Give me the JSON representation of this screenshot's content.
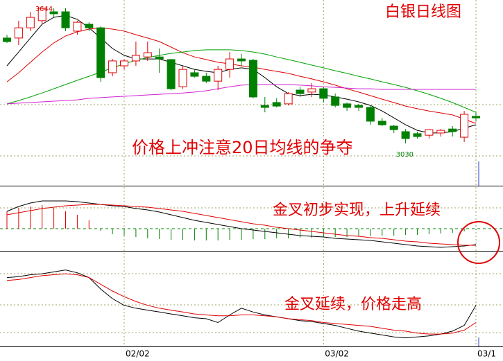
{
  "chart_data": [
    {
      "type": "candlestick",
      "title": "白银日线图",
      "annotation": "价格上冲注意20日均线的争夺",
      "categories": [
        null,
        null,
        null,
        null,
        null,
        null,
        null,
        null,
        null,
        null,
        "02/02",
        null,
        null,
        null,
        null,
        null,
        null,
        null,
        null,
        null,
        null,
        null,
        null,
        null,
        null,
        null,
        null,
        "03/02",
        null,
        null,
        null,
        null,
        null,
        null,
        null,
        null,
        null,
        null,
        null,
        null,
        "03/1"
      ],
      "open": [
        3504,
        3504,
        3550,
        3582,
        3622,
        3622,
        3535,
        3566,
        3550,
        3348,
        3379,
        3401,
        3419,
        3419,
        3407,
        3285,
        3348,
        3332,
        3310,
        3363,
        3410,
        3404,
        3201,
        3214,
        3208,
        3270,
        3261,
        3276,
        3239,
        3208,
        3201,
        3192,
        3130,
        3108,
        3083,
        3074,
        3067,
        3077,
        3095,
        3058,
        3152
      ],
      "high": [
        3519,
        3582,
        3622,
        3644,
        3638,
        3638,
        3582,
        3575,
        3557,
        3410,
        3410,
        3488,
        3488,
        3457,
        3410,
        3379,
        3363,
        3348,
        3379,
        3441,
        3432,
        3410,
        3239,
        3233,
        3261,
        3285,
        3301,
        3285,
        3254,
        3214,
        3208,
        3201,
        3145,
        3114,
        3095,
        3083,
        3095,
        3095,
        3108,
        3176,
        3170
      ],
      "low": [
        3482,
        3472,
        3535,
        3566,
        3597,
        3535,
        3519,
        3535,
        3307,
        3332,
        3363,
        3379,
        3401,
        3348,
        3270,
        3276,
        3326,
        3301,
        3270,
        3326,
        3379,
        3233,
        3170,
        3192,
        3201,
        3239,
        3239,
        3214,
        3192,
        3176,
        3176,
        3114,
        3108,
        3077,
        3030,
        3052,
        3052,
        3061,
        3061,
        3036,
        3130
      ],
      "close": [
        3488,
        3550,
        3597,
        3638,
        3613,
        3550,
        3575,
        3550,
        3326,
        3401,
        3401,
        3426,
        3438,
        3410,
        3276,
        3363,
        3332,
        3310,
        3363,
        3410,
        3401,
        3239,
        3192,
        3198,
        3254,
        3254,
        3276,
        3233,
        3201,
        3192,
        3192,
        3130,
        3114,
        3092,
        3052,
        3061,
        3092,
        3089,
        3083,
        3161,
        3145
      ],
      "up_color": "#e00000",
      "down_color": "#008000",
      "high_label": 3644,
      "low_label": 3030,
      "ylim": [
        2840,
        3675
      ],
      "series": [
        {
          "color": "#000000",
          "values": [
            3379,
            3441,
            3504,
            3566,
            3597,
            3606,
            3588,
            3550,
            3504,
            3457,
            3426,
            3410,
            3410,
            3410,
            3395,
            3379,
            3363,
            3354,
            3348,
            3363,
            3370,
            3363,
            3326,
            3285,
            3254,
            3245,
            3251,
            3248,
            3239,
            3229,
            3217,
            3201,
            3176,
            3145,
            3114,
            3089,
            3077,
            3077,
            3083,
            3099,
            3114
          ]
        },
        {
          "color": "#e00000",
          "values": [
            3307,
            3348,
            3395,
            3441,
            3482,
            3513,
            3532,
            3544,
            3550,
            3544,
            3535,
            3519,
            3504,
            3488,
            3463,
            3438,
            3419,
            3407,
            3395,
            3388,
            3379,
            3373,
            3363,
            3354,
            3345,
            3332,
            3320,
            3307,
            3292,
            3276,
            3261,
            3245,
            3229,
            3214,
            3198,
            3186,
            3176,
            3167,
            3158,
            3139,
            3120
          ]
        },
        {
          "color": "#00a000",
          "values": [
            3208,
            3223,
            3239,
            3257,
            3276,
            3295,
            3314,
            3332,
            3351,
            3370,
            3388,
            3404,
            3416,
            3426,
            3435,
            3441,
            3448,
            3451,
            3451,
            3451,
            3448,
            3441,
            3432,
            3419,
            3407,
            3395,
            3382,
            3370,
            3357,
            3345,
            3332,
            3320,
            3307,
            3295,
            3282,
            3267,
            3251,
            3233,
            3214,
            3192,
            3170
          ]
        },
        {
          "color": "#d020d0",
          "values": [
            3208,
            3211,
            3214,
            3217,
            3220,
            3223,
            3226,
            3233,
            3236,
            3239,
            3242,
            3245,
            3248,
            3251,
            3254,
            3257,
            3261,
            3267,
            3276,
            3285,
            3292,
            3295,
            3295,
            3295,
            3295,
            3292,
            3289,
            3285,
            3282,
            3279,
            3276,
            3276,
            3273,
            3273,
            3273,
            3273,
            3273,
            3273,
            3273,
            3273,
            3273
          ]
        }
      ]
    },
    {
      "type": "macd",
      "annotation": "金叉初步实现，上升延续",
      "values": [
        25,
        30,
        32,
        34,
        30,
        25,
        20,
        12,
        -3,
        -8,
        -10,
        -12,
        -14,
        -15,
        -16,
        -16,
        -17,
        -17,
        -17,
        -16,
        -16,
        -15,
        -15,
        -14,
        -14,
        -13,
        -13,
        -12,
        -12,
        -12,
        -11,
        -11,
        -10,
        -10,
        -9,
        -9,
        -8,
        -7,
        -6,
        -4,
        -2
      ],
      "pos_color": "#e00000",
      "neg_color": "#008000",
      "ylim": [
        -32,
        62
      ],
      "series": [
        {
          "color": "#000000",
          "values": [
            25,
            32,
            37,
            40,
            40,
            40,
            39,
            37,
            35,
            33,
            32,
            29,
            27,
            24,
            20,
            16,
            12,
            9,
            6,
            3,
            0,
            -2,
            -4,
            -6,
            -8,
            -10,
            -11,
            -12,
            -14,
            -15,
            -16,
            -17,
            -19,
            -21,
            -23,
            -25,
            -26,
            -27,
            -26,
            -25,
            -23
          ]
        },
        {
          "color": "#e00000",
          "values": [
            20,
            23,
            26,
            29,
            31,
            33,
            34,
            35,
            35,
            34,
            33,
            32,
            31,
            29,
            27,
            25,
            22,
            19,
            16,
            13,
            10,
            7,
            5,
            2,
            0,
            -2,
            -4,
            -6,
            -8,
            -10,
            -11,
            -13,
            -14,
            -16,
            -18,
            -19,
            -21,
            -22,
            -23,
            -24,
            -24
          ]
        }
      ]
    },
    {
      "type": "line",
      "annotation": "金叉延续，价格走高",
      "ylim": [
        0,
        100
      ],
      "series": [
        {
          "color": "#000000",
          "values": [
            72,
            73,
            75,
            76,
            78,
            80,
            77,
            72,
            60,
            50,
            43,
            40,
            38,
            36,
            34,
            32,
            30,
            29,
            25,
            33,
            40,
            36,
            33,
            31,
            29,
            27,
            26,
            24,
            22,
            19,
            16,
            14,
            12,
            10,
            9,
            10,
            11,
            13,
            16,
            22,
            43
          ]
        },
        {
          "color": "#e00000",
          "values": [
            69,
            70,
            72,
            74,
            75,
            76,
            75,
            72,
            65,
            58,
            52,
            47,
            43,
            40,
            38,
            36,
            34,
            33,
            32,
            32,
            33,
            33,
            32,
            31,
            29,
            28,
            27,
            25,
            24,
            23,
            22,
            21,
            19,
            17,
            16,
            14,
            13,
            13,
            14,
            17,
            25
          ]
        }
      ]
    }
  ]
}
